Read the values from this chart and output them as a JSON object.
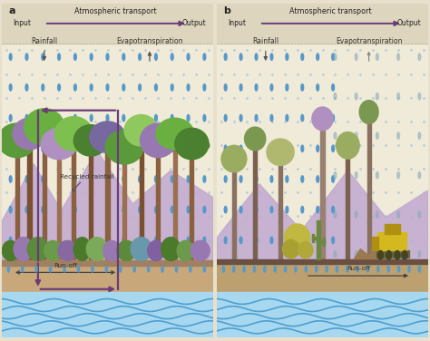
{
  "bg_color": "#e8e0cc",
  "panel_bg": "#f0ead8",
  "header_bg": "#ddd5be",
  "dot_color": "#b0c8d8",
  "arrow_color": "#6a3d7a",
  "water_top_color": "#7cc8e8",
  "water_line_color": "#4499cc",
  "water_bg_color": "#a8d8f0",
  "ground_color": "#c8a87a",
  "ground_top_color": "#a08060",
  "mountain_color_a": "#c0a8d0",
  "mountain_color_b": "#c0a8d0",
  "title_a": "a",
  "title_b": "b",
  "atm_transport": "Atmospheric transport",
  "input_label": "Input",
  "output_label": "Output",
  "rainfall_label": "Rainfall",
  "evapo_label": "Evapotranspiration",
  "recycled_label": "Recycled rainfall",
  "runoff_label": "Run-off",
  "rain_color": "#5599cc",
  "rain_color_b": "#4488bb",
  "tree_greens": [
    "#5a9a3a",
    "#6ab040",
    "#7ec050",
    "#4a8030",
    "#90c860"
  ],
  "tree_purples": [
    "#9878b0",
    "#b090c0",
    "#7868a0"
  ],
  "tree_browns": [
    "#8a6040",
    "#7a5030",
    "#9a7050"
  ],
  "deforested_browns": [
    "#8a7060",
    "#7a6050",
    "#9a8070"
  ],
  "deforested_greens": [
    "#9aac60",
    "#7a9850",
    "#b0b870"
  ],
  "olive_green": "#8a9850",
  "yellow_green": "#c8c060",
  "cactus_color": "#6a8840",
  "bull_yellow": "#d4b820",
  "bull_dark": "#b09010",
  "bull_track": "#666644"
}
